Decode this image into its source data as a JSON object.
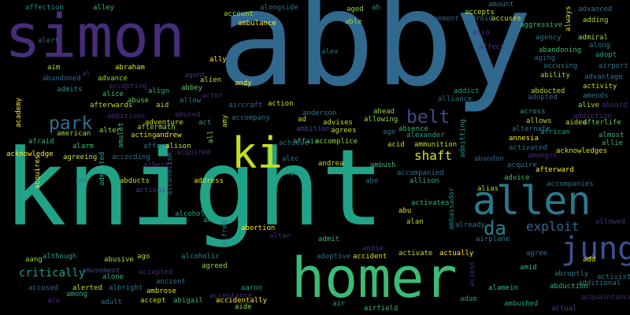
{
  "words": [
    {
      "text": "abby",
      "color": "#31688e"
    },
    {
      "text": "knight",
      "color": "#20a386"
    },
    {
      "text": "simon",
      "color": "#472c7a"
    },
    {
      "text": "homer",
      "color": "#3bbc75"
    },
    {
      "text": "allen",
      "color": "#2a788e"
    },
    {
      "text": "ki",
      "color": "#c2df23"
    },
    {
      "text": "jung",
      "color": "#3b518b"
    },
    {
      "text": "park",
      "color": "#2c728e"
    },
    {
      "text": "belt",
      "color": "#3e4989"
    },
    {
      "text": "da",
      "color": "#26828e"
    },
    {
      "text": "exploit",
      "color": "#31688e"
    },
    {
      "text": "shaft",
      "color": "#dde318"
    },
    {
      "text": "critically",
      "color": "#1f9e89"
    },
    {
      "text": "affection",
      "color": "#21918c"
    },
    {
      "text": "alley",
      "color": "#35b779"
    },
    {
      "text": "aged",
      "color": "#90d743"
    },
    {
      "text": "ah",
      "color": "#21918c"
    },
    {
      "text": "amount",
      "color": "#2a788e"
    },
    {
      "text": "advanced",
      "color": "#2c728e"
    },
    {
      "text": "accepts",
      "color": "#c2df23"
    },
    {
      "text": "always",
      "color": "#d8e219"
    },
    {
      "text": "able",
      "color": "#90d743"
    },
    {
      "text": "agreement",
      "color": "#33638d"
    },
    {
      "text": "android",
      "color": "#2c728e"
    },
    {
      "text": "accuses",
      "color": "#c2df23"
    },
    {
      "text": "adding",
      "color": "#a0da39"
    },
    {
      "text": "account",
      "color": "#9fda3a"
    },
    {
      "text": "alongside",
      "color": "#2a788e"
    },
    {
      "text": "ambulance",
      "color": "#fde725"
    },
    {
      "text": "alert",
      "color": "#31688e"
    },
    {
      "text": "also",
      "color": "#472c7a"
    },
    {
      "text": "agency",
      "color": "#2a788e"
    },
    {
      "text": "admiral",
      "color": "#a0da39"
    },
    {
      "text": "aggressive",
      "color": "#3bbc75"
    },
    {
      "text": "affect",
      "color": "#433e85"
    },
    {
      "text": "along",
      "color": "#2a788e"
    },
    {
      "text": "aim",
      "color": "#b5de2b"
    },
    {
      "text": "abraham",
      "color": "#dde318"
    },
    {
      "text": "alex",
      "color": "#2a788e"
    },
    {
      "text": "ally",
      "color": "#fde725"
    },
    {
      "text": "abandoning",
      "color": "#3bbc75"
    },
    {
      "text": "adopt",
      "color": "#20a386"
    },
    {
      "text": "al",
      "color": "#472c7a"
    },
    {
      "text": "aging",
      "color": "#33638d"
    },
    {
      "text": "airport",
      "color": "#2c728e"
    },
    {
      "text": "abandoned",
      "color": "#31688e"
    },
    {
      "text": "advance",
      "color": "#9fda3a"
    },
    {
      "text": "agent",
      "color": "#472c7a"
    },
    {
      "text": "accusing",
      "color": "#2a788e"
    },
    {
      "text": "advantage",
      "color": "#2a788e"
    },
    {
      "text": "admits",
      "color": "#21918c"
    },
    {
      "text": "accepting",
      "color": "#482878"
    },
    {
      "text": "alien",
      "color": "#b5de2b"
    },
    {
      "text": "andy",
      "color": "#fde725"
    },
    {
      "text": "ability",
      "color": "#a0da39"
    },
    {
      "text": "activity",
      "color": "#c2df23"
    },
    {
      "text": "alice",
      "color": "#3bbc75"
    },
    {
      "text": "align",
      "color": "#28ae80"
    },
    {
      "text": "abbey",
      "color": "#5ec962"
    },
    {
      "text": "addict",
      "color": "#1f9e89"
    },
    {
      "text": "abducted",
      "color": "#b5de2b"
    },
    {
      "text": "amends",
      "color": "#2a788e"
    },
    {
      "text": "actor",
      "color": "#482878"
    },
    {
      "text": "abuse",
      "color": "#5ec962"
    },
    {
      "text": "allow",
      "color": "#2c728e"
    },
    {
      "text": "action",
      "color": "#c8e020"
    },
    {
      "text": "afterwards",
      "color": "#c2df23"
    },
    {
      "text": "aid",
      "color": "#b5de2b"
    },
    {
      "text": "aircraft",
      "color": "#31688e"
    },
    {
      "text": "alliance",
      "color": "#2c728e"
    },
    {
      "text": "adopted",
      "color": "#33638d"
    },
    {
      "text": "alive",
      "color": "#a0da39"
    },
    {
      "text": "aboard",
      "color": "#472c7a"
    },
    {
      "text": "anderson",
      "color": "#2a788e"
    },
    {
      "text": "ahead",
      "color": "#90d743"
    },
    {
      "text": "across",
      "color": "#1f9e89"
    },
    {
      "text": "academy",
      "color": "#fde725"
    },
    {
      "text": "ambitious",
      "color": "#482878"
    },
    {
      "text": "abused",
      "color": "#472c7a"
    },
    {
      "text": "ad",
      "color": "#c2df23"
    },
    {
      "text": "advises",
      "color": "#c2df23"
    },
    {
      "text": "allowing",
      "color": "#90d743"
    },
    {
      "text": "addiction",
      "color": "#472c7a"
    },
    {
      "text": "afterlife",
      "color": "#5ec962"
    },
    {
      "text": "adventure",
      "color": "#c8e020"
    },
    {
      "text": "act",
      "color": "#20a386"
    },
    {
      "text": "amy",
      "color": "#c8e020"
    },
    {
      "text": "accompany",
      "color": "#2c728e"
    },
    {
      "text": "allows",
      "color": "#c2df23"
    },
    {
      "text": "aided",
      "color": "#c2df23"
    },
    {
      "text": "alter",
      "color": "#90d743"
    },
    {
      "text": "aftermath",
      "color": "#90d743"
    },
    {
      "text": "acting",
      "color": "#c8e020"
    },
    {
      "text": "andrew",
      "color": "#fde725"
    },
    {
      "text": "amulet",
      "color": "#35b779"
    },
    {
      "text": "ambition",
      "color": "#3e4989"
    },
    {
      "text": "agrees",
      "color": "#c2df23"
    },
    {
      "text": "age",
      "color": "#2c728e"
    },
    {
      "text": "absence",
      "color": "#35b779"
    },
    {
      "text": "alternate",
      "color": "#2a788e"
    },
    {
      "text": "american",
      "color": "#9fda3a"
    },
    {
      "text": "alexander",
      "color": "#20a386"
    },
    {
      "text": "african",
      "color": "#20a386"
    },
    {
      "text": "afraid",
      "color": "#35b779"
    },
    {
      "text": "all",
      "color": "#90d743"
    },
    {
      "text": "affair",
      "color": "#3bbc75"
    },
    {
      "text": "annesia",
      "color": "#fde725"
    },
    {
      "text": "almost",
      "color": "#35b779"
    },
    {
      "text": "alarm",
      "color": "#35b779"
    },
    {
      "text": "afford",
      "color": "#2c728e"
    },
    {
      "text": "alison",
      "color": "#c8e020"
    },
    {
      "text": "achieve",
      "color": "#2a788e"
    },
    {
      "text": "accomplice",
      "color": "#90d743"
    },
    {
      "text": "acid",
      "color": "#c2df23"
    },
    {
      "text": "ammunition",
      "color": "#c2df23"
    },
    {
      "text": "activated",
      "color": "#2c728e"
    },
    {
      "text": "acknowledges",
      "color": "#dde318"
    },
    {
      "text": "allie",
      "color": "#35b779"
    },
    {
      "text": "acknowledge",
      "color": "#fde725"
    },
    {
      "text": "agreeing",
      "color": "#c8e020"
    },
    {
      "text": "admitted",
      "color": "#20a386"
    },
    {
      "text": "according",
      "color": "#2c728e"
    },
    {
      "text": "acquired",
      "color": "#482878"
    },
    {
      "text": "alec",
      "color": "#2c728e"
    },
    {
      "text": "admitting",
      "color": "#21918c"
    },
    {
      "text": "amongst",
      "color": "#472c7a"
    },
    {
      "text": "acquires",
      "color": "#fde725"
    },
    {
      "text": "albert",
      "color": "#482878"
    },
    {
      "text": "andrea",
      "color": "#c2df23"
    },
    {
      "text": "ambush",
      "color": "#35b779"
    },
    {
      "text": "abandon",
      "color": "#33638d"
    },
    {
      "text": "acquire",
      "color": "#2c728e"
    },
    {
      "text": "afterward",
      "color": "#fde725"
    },
    {
      "text": "alcoholism",
      "color": "#2c728e"
    },
    {
      "text": "alpha",
      "color": "#21918c"
    },
    {
      "text": "accompanied",
      "color": "#2c728e"
    },
    {
      "text": "advice",
      "color": "#3bbc75"
    },
    {
      "text": "ana",
      "color": "#2a788e"
    },
    {
      "text": "abducts",
      "color": "#c8e020"
    },
    {
      "text": "address",
      "color": "#dde318"
    },
    {
      "text": "abe",
      "color": "#2c728e"
    },
    {
      "text": "allison",
      "color": "#35b779"
    },
    {
      "text": "accompanies",
      "color": "#2c728e"
    },
    {
      "text": "actions",
      "color": "#433e85"
    },
    {
      "text": "alias",
      "color": "#b5de2b"
    },
    {
      "text": "ambassador",
      "color": "#26828e"
    },
    {
      "text": "abu",
      "color": "#dde318"
    },
    {
      "text": "activates",
      "color": "#35b779"
    },
    {
      "text": "alcohol",
      "color": "#1f9e89"
    },
    {
      "text": "america",
      "color": "#20a386"
    },
    {
      "text": "alfred",
      "color": "#2c728e"
    },
    {
      "text": "alan",
      "color": "#b5de2b"
    },
    {
      "text": "already",
      "color": "#2a788e"
    },
    {
      "text": "allowed",
      "color": "#472c7a"
    },
    {
      "text": "abortion",
      "color": "#fde725"
    },
    {
      "text": "altar",
      "color": "#472c7a"
    },
    {
      "text": "admit",
      "color": "#35b779"
    },
    {
      "text": "airplane",
      "color": "#2a788e"
    },
    {
      "text": "andie",
      "color": "#472c7a"
    },
    {
      "text": "agree",
      "color": "#2c728e"
    },
    {
      "text": "aang",
      "color": "#90d743"
    },
    {
      "text": "although",
      "color": "#20a386"
    },
    {
      "text": "abusive",
      "color": "#9fda3a"
    },
    {
      "text": "ago",
      "color": "#a0da39"
    },
    {
      "text": "alcoholic",
      "color": "#21918c"
    },
    {
      "text": "adoptive",
      "color": "#2c728e"
    },
    {
      "text": "accident",
      "color": "#dde318"
    },
    {
      "text": "activate",
      "color": "#c2df23"
    },
    {
      "text": "actually",
      "color": "#fde725"
    },
    {
      "text": "add",
      "color": "#dde318"
    },
    {
      "text": "agreed",
      "color": "#90d743"
    },
    {
      "text": "amid",
      "color": "#35b779"
    },
    {
      "text": "amusement",
      "color": "#3e4989"
    },
    {
      "text": "alone",
      "color": "#35b779"
    },
    {
      "text": "accepted",
      "color": "#472c7a"
    },
    {
      "text": "ancient",
      "color": "#2c728e"
    },
    {
      "text": "abruptly",
      "color": "#2a788e"
    },
    {
      "text": "activist",
      "color": "#2a788e"
    },
    {
      "text": "access",
      "color": "#482878"
    },
    {
      "text": "additional",
      "color": "#2a788e"
    },
    {
      "text": "accused",
      "color": "#31688e"
    },
    {
      "text": "alerted",
      "color": "#c2df23"
    },
    {
      "text": "albright",
      "color": "#2a788e"
    },
    {
      "text": "ambrose",
      "color": "#dde318"
    },
    {
      "text": "aaron",
      "color": "#1f9e89"
    },
    {
      "text": "abduction",
      "color": "#35b779"
    },
    {
      "text": "alamein",
      "color": "#35b779"
    },
    {
      "text": "among",
      "color": "#35b779"
    },
    {
      "text": "acceptance",
      "color": "#482878"
    },
    {
      "text": "ace",
      "color": "#472c7a"
    },
    {
      "text": "accept",
      "color": "#c2df23"
    },
    {
      "text": "abigail",
      "color": "#35b779"
    },
    {
      "text": "accidentally",
      "color": "#fde725"
    },
    {
      "text": "adam",
      "color": "#21918c"
    },
    {
      "text": "acquaintance",
      "color": "#472c7a"
    },
    {
      "text": "adult",
      "color": "#2c728e"
    },
    {
      "text": "aide",
      "color": "#90d743"
    },
    {
      "text": "air",
      "color": "#20a386"
    },
    {
      "text": "airfield",
      "color": "#35b779"
    },
    {
      "text": "ambushed",
      "color": "#20a386"
    },
    {
      "text": "actual",
      "color": "#433e85"
    }
  ]
}
